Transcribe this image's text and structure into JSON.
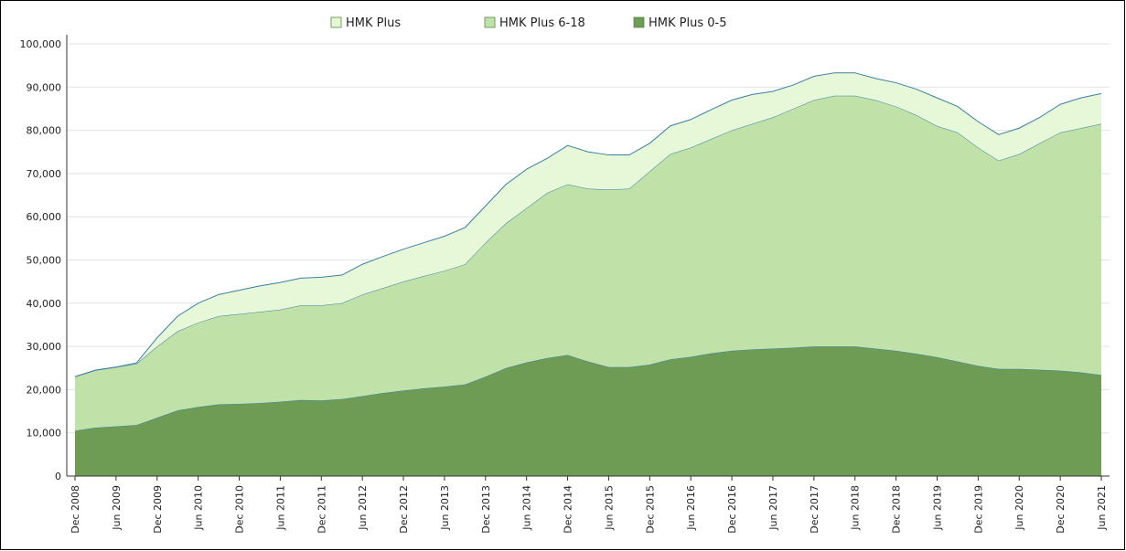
{
  "chart_data": {
    "type": "area",
    "stacked": true,
    "categories": [
      "Dec 2008",
      null,
      "Jun 2009",
      null,
      "Dec 2009",
      null,
      "Jun 2010",
      null,
      "Dec 2010",
      null,
      "Jun 2011",
      null,
      "Dec 2011",
      null,
      "Jun 2012",
      null,
      "Dec 2012",
      null,
      "Jun 2013",
      null,
      "Dec 2013",
      null,
      "Jun 2014",
      null,
      "Dec 2014",
      null,
      "Jun 2015",
      null,
      "Dec 2015",
      null,
      "Jun 2016",
      null,
      "Dec 2016",
      null,
      "Jun 2017",
      null,
      "Dec 2017",
      null,
      "Jun 2018",
      null,
      "Dec 2018",
      null,
      "Jun 2019",
      null,
      "Dec 2019",
      null,
      "Jun 2020",
      null,
      "Dec 2020",
      null,
      "Jun 2021"
    ],
    "series": [
      {
        "name": "HMK Plus",
        "color": "#e6f8d8",
        "values": [
          0,
          0,
          0,
          200,
          2000,
          3500,
          4500,
          5000,
          5500,
          6000,
          6300,
          6300,
          6500,
          6500,
          7000,
          7300,
          7500,
          7700,
          8000,
          8500,
          8500,
          9000,
          9000,
          8000,
          9000,
          8500,
          8000,
          7800,
          6500,
          6500,
          6500,
          6800,
          7000,
          6800,
          6000,
          5500,
          5500,
          5300,
          5300,
          5000,
          5500,
          6000,
          6500,
          6000,
          6000,
          6000,
          6000,
          6000,
          6500,
          7000,
          7000
        ]
      },
      {
        "name": "HMK Plus 6-18",
        "color": "#c0e2a8",
        "values": [
          12500,
          13300,
          13700,
          14200,
          16500,
          18300,
          19500,
          20400,
          20800,
          21100,
          21300,
          21900,
          22000,
          22200,
          23500,
          24300,
          25200,
          26000,
          26800,
          27800,
          31000,
          33500,
          35700,
          38200,
          39500,
          40000,
          41100,
          41300,
          44700,
          47500,
          48400,
          49600,
          51000,
          52200,
          53500,
          55300,
          57000,
          58000,
          58000,
          57500,
          56500,
          55200,
          53500,
          53000,
          50500,
          48200,
          49700,
          52400,
          55100,
          56500,
          58100
        ]
      },
      {
        "name": "HMK Plus 0-5",
        "color": "#6f9c55",
        "values": [
          10500,
          11200,
          11500,
          11800,
          13500,
          15200,
          16000,
          16600,
          16700,
          16900,
          17200,
          17600,
          17500,
          17800,
          18500,
          19200,
          19800,
          20300,
          20700,
          21200,
          23000,
          25000,
          26300,
          27300,
          28000,
          26500,
          25200,
          25200,
          25800,
          27000,
          27600,
          28400,
          29000,
          29300,
          29500,
          29700,
          30000,
          30000,
          30000,
          29500,
          29000,
          28300,
          27500,
          26500,
          25500,
          24800,
          24800,
          24600,
          24400,
          24000,
          23400
        ]
      }
    ],
    "ylim": [
      0,
      100000
    ],
    "yticks": [
      0,
      {
        "value": 10000,
        "label": "10,000"
      },
      {
        "value": 20000,
        "label": "20,000"
      },
      {
        "value": 30000,
        "label": "30,000"
      },
      {
        "value": 40000,
        "label": "40,000"
      },
      {
        "value": 50000,
        "label": "50,000"
      },
      {
        "value": 60000,
        "label": "60,000"
      },
      {
        "value": 70000,
        "label": "70,000"
      },
      {
        "value": 80000,
        "label": "80,000"
      },
      {
        "value": 90000,
        "label": "90,000"
      },
      {
        "value": 100000,
        "label": "100,000"
      }
    ],
    "grid": true,
    "legend": "top"
  }
}
